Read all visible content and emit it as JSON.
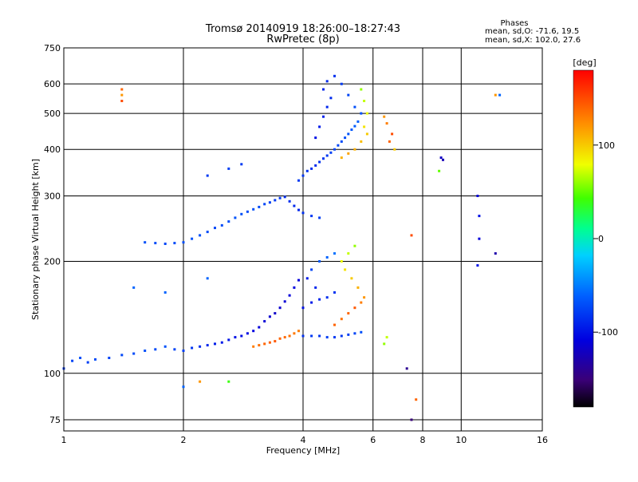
{
  "chart_data": {
    "type": "scatter",
    "title": "Tromsø 20140919 18:26:00–18:27:43",
    "subtitle": "RwPretec (8p)",
    "xlabel": "Frequency [MHz]",
    "ylabel": "Stationary phase Virtual Height [km]",
    "x_scale": "log",
    "y_scale": "log",
    "xlim": [
      1,
      16
    ],
    "ylim": [
      70,
      750
    ],
    "x_ticks": [
      1,
      2,
      4,
      6,
      8,
      10,
      16
    ],
    "x_tick_labels": [
      "1",
      "2",
      "4",
      "6",
      "8",
      "10",
      "16"
    ],
    "y_ticks": [
      75,
      100,
      200,
      300,
      400,
      500,
      600,
      750
    ],
    "y_tick_labels": [
      "75",
      "100",
      "200",
      "300",
      "400",
      "500",
      "600",
      "750"
    ],
    "grid": true,
    "stats": {
      "heading": "Phases",
      "line1": "mean, sd,O: -71.6, 19.5",
      "line2": "mean, sd,X: 102.0, 27.6"
    },
    "colorbar": {
      "label": "[deg]",
      "range": [
        -180,
        180
      ],
      "ticks": [
        100,
        0,
        -100
      ],
      "tick_labels": [
        "100",
        "0",
        "-100"
      ]
    },
    "series": [
      {
        "points": [
          [
            1.0,
            103,
            -80
          ],
          [
            1.05,
            108,
            -75
          ],
          [
            1.1,
            110,
            -70
          ],
          [
            1.15,
            107,
            -78
          ],
          [
            1.2,
            109,
            -72
          ],
          [
            1.3,
            110,
            -75
          ],
          [
            1.4,
            112,
            -74
          ],
          [
            1.5,
            113,
            -72
          ],
          [
            1.6,
            115,
            -70
          ],
          [
            1.7,
            116,
            -72
          ],
          [
            1.8,
            118,
            -68
          ],
          [
            1.9,
            116,
            -75
          ],
          [
            2.0,
            115,
            -78
          ],
          [
            2.1,
            117,
            -82
          ],
          [
            2.2,
            118,
            -86
          ],
          [
            2.3,
            119,
            -90
          ],
          [
            2.4,
            120,
            -94
          ],
          [
            2.5,
            121,
            -96
          ],
          [
            2.6,
            123,
            -98
          ],
          [
            2.7,
            125,
            -100
          ],
          [
            2.8,
            126,
            -102
          ],
          [
            2.9,
            128,
            -104
          ],
          [
            3.0,
            130,
            -108
          ],
          [
            3.1,
            133,
            -110
          ],
          [
            3.2,
            138,
            -112
          ],
          [
            3.3,
            142,
            -115
          ],
          [
            3.4,
            145,
            -118
          ],
          [
            3.5,
            150,
            -115
          ],
          [
            3.6,
            156,
            -112
          ],
          [
            3.7,
            162,
            -110
          ],
          [
            3.8,
            170,
            -108
          ],
          [
            3.9,
            178,
            -110
          ]
        ]
      },
      {
        "points": [
          [
            3.0,
            118,
            130
          ],
          [
            3.1,
            119,
            135
          ],
          [
            3.2,
            120,
            140
          ],
          [
            3.3,
            121,
            142
          ],
          [
            3.4,
            122,
            145
          ],
          [
            3.5,
            124,
            140
          ],
          [
            3.6,
            125,
            138
          ],
          [
            3.7,
            126,
            135
          ],
          [
            3.8,
            128,
            132
          ],
          [
            3.9,
            130,
            130
          ]
        ]
      },
      {
        "points": [
          [
            4.0,
            126,
            -85
          ],
          [
            4.2,
            126,
            -80
          ],
          [
            4.4,
            126,
            -82
          ],
          [
            4.6,
            125,
            -78
          ],
          [
            4.8,
            125,
            -80
          ],
          [
            5.0,
            126,
            -82
          ],
          [
            5.2,
            127,
            -78
          ],
          [
            5.4,
            128,
            -75
          ],
          [
            5.6,
            129,
            -70
          ]
        ]
      },
      {
        "points": [
          [
            4.8,
            135,
            140
          ],
          [
            5.0,
            140,
            135
          ],
          [
            5.2,
            145,
            140
          ],
          [
            5.4,
            150,
            145
          ],
          [
            5.6,
            155,
            130
          ],
          [
            5.7,
            160,
            120
          ],
          [
            5.5,
            170,
            110
          ],
          [
            5.3,
            180,
            100
          ],
          [
            5.1,
            190,
            90
          ],
          [
            5.0,
            200,
            80
          ],
          [
            5.2,
            210,
            70
          ],
          [
            5.4,
            220,
            60
          ]
        ]
      },
      {
        "points": [
          [
            4.0,
            150,
            -100
          ],
          [
            4.2,
            155,
            -95
          ],
          [
            4.4,
            158,
            -90
          ],
          [
            4.6,
            160,
            -85
          ],
          [
            4.8,
            165,
            -82
          ],
          [
            4.3,
            170,
            -90
          ],
          [
            4.1,
            180,
            -95
          ],
          [
            4.2,
            190,
            -75
          ],
          [
            4.4,
            200,
            -65
          ],
          [
            4.6,
            205,
            -60
          ],
          [
            4.8,
            210,
            -55
          ]
        ]
      },
      {
        "points": [
          [
            1.6,
            225,
            -70
          ],
          [
            1.7,
            224,
            -72
          ],
          [
            1.8,
            223,
            -74
          ],
          [
            1.9,
            224,
            -72
          ],
          [
            2.0,
            225,
            -70
          ],
          [
            2.1,
            230,
            -68
          ],
          [
            2.2,
            235,
            -70
          ],
          [
            2.3,
            240,
            -72
          ],
          [
            2.4,
            246,
            -74
          ],
          [
            2.5,
            250,
            -72
          ],
          [
            2.6,
            256,
            -70
          ],
          [
            2.7,
            262,
            -68
          ],
          [
            2.8,
            268,
            -70
          ],
          [
            2.9,
            272,
            -72
          ],
          [
            3.0,
            276,
            -70
          ],
          [
            3.1,
            280,
            -72
          ],
          [
            3.2,
            285,
            -75
          ],
          [
            3.3,
            288,
            -78
          ],
          [
            3.4,
            292,
            -80
          ],
          [
            3.5,
            296,
            -82
          ],
          [
            3.6,
            298,
            -84
          ],
          [
            3.7,
            290,
            -86
          ],
          [
            3.8,
            282,
            -88
          ],
          [
            3.9,
            275,
            -90
          ],
          [
            4.0,
            270,
            -85
          ],
          [
            4.2,
            265,
            -80
          ],
          [
            4.4,
            262,
            -78
          ]
        ]
      },
      {
        "points": [
          [
            2.3,
            340,
            -80
          ],
          [
            2.6,
            355,
            -78
          ],
          [
            2.8,
            365,
            -80
          ]
        ]
      },
      {
        "points": [
          [
            3.9,
            330,
            -80
          ],
          [
            4.0,
            340,
            -82
          ],
          [
            4.1,
            350,
            -84
          ],
          [
            4.2,
            355,
            -86
          ],
          [
            4.3,
            362,
            -88
          ],
          [
            4.4,
            370,
            -85
          ],
          [
            4.5,
            378,
            -82
          ],
          [
            4.6,
            385,
            -80
          ],
          [
            4.7,
            392,
            -78
          ],
          [
            4.8,
            400,
            -76
          ],
          [
            4.9,
            410,
            -74
          ],
          [
            5.0,
            420,
            -72
          ],
          [
            5.1,
            430,
            -70
          ],
          [
            5.2,
            440,
            -68
          ],
          [
            5.3,
            452,
            -66
          ],
          [
            5.4,
            462,
            -64
          ],
          [
            5.5,
            475,
            -62
          ]
        ]
      },
      {
        "points": [
          [
            4.3,
            430,
            -100
          ],
          [
            4.4,
            460,
            -95
          ],
          [
            4.5,
            490,
            -92
          ],
          [
            4.6,
            520,
            -90
          ],
          [
            4.7,
            550,
            -88
          ],
          [
            4.5,
            580,
            -90
          ],
          [
            4.6,
            610,
            -88
          ],
          [
            4.8,
            630,
            -85
          ],
          [
            5.0,
            600,
            -80
          ],
          [
            5.2,
            560,
            -75
          ],
          [
            5.4,
            520,
            -70
          ],
          [
            5.6,
            500,
            -68
          ]
        ]
      },
      {
        "points": [
          [
            5.0,
            380,
            110
          ],
          [
            5.2,
            390,
            115
          ],
          [
            5.4,
            400,
            110
          ],
          [
            5.6,
            420,
            105
          ],
          [
            5.8,
            440,
            100
          ],
          [
            5.7,
            460,
            90
          ],
          [
            5.8,
            500,
            80
          ],
          [
            5.7,
            540,
            70
          ],
          [
            5.6,
            580,
            60
          ]
        ]
      },
      {
        "points": [
          [
            6.6,
            420,
            140
          ],
          [
            6.7,
            440,
            150
          ],
          [
            6.5,
            470,
            130
          ],
          [
            6.4,
            490,
            120
          ],
          [
            6.8,
            400,
            100
          ]
        ]
      },
      {
        "points": [
          [
            1.4,
            540,
            150
          ],
          [
            1.4,
            560,
            120
          ],
          [
            1.4,
            580,
            140
          ],
          [
            8.9,
            380,
            -120
          ],
          [
            9.0,
            375,
            -125
          ],
          [
            8.8,
            350,
            50
          ],
          [
            11.0,
            300,
            -110
          ],
          [
            11.1,
            265,
            -100
          ],
          [
            11.1,
            230,
            -110
          ],
          [
            11.0,
            195,
            -100
          ],
          [
            12.2,
            210,
            -130
          ],
          [
            12.2,
            560,
            120
          ],
          [
            12.5,
            560,
            -60
          ],
          [
            7.5,
            235,
            150
          ],
          [
            7.5,
            75,
            -150
          ],
          [
            7.7,
            85,
            140
          ],
          [
            7.3,
            103,
            -140
          ],
          [
            6.4,
            120,
            60
          ],
          [
            6.5,
            125,
            70
          ],
          [
            1.5,
            170,
            -60
          ],
          [
            1.8,
            165,
            -60
          ],
          [
            2.3,
            180,
            -60
          ],
          [
            2.0,
            92,
            -60
          ],
          [
            2.2,
            95,
            120
          ],
          [
            2.6,
            95,
            40
          ]
        ]
      }
    ]
  }
}
